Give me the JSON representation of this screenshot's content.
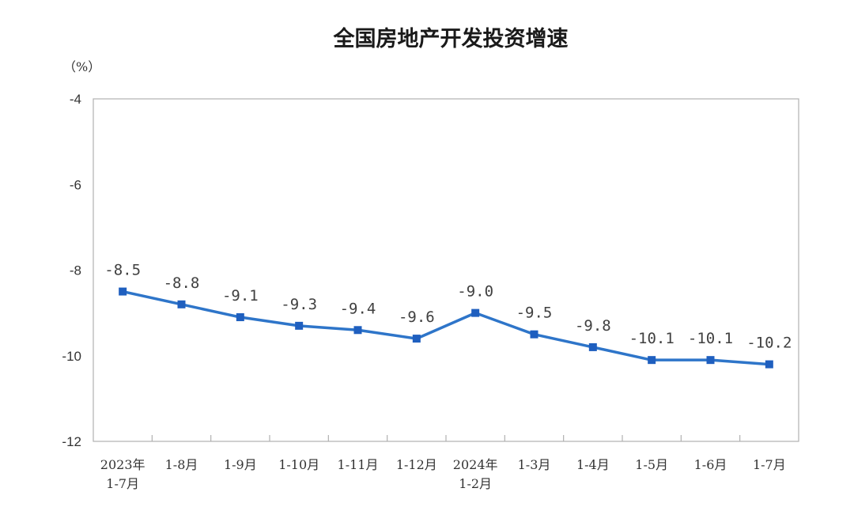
{
  "chart_data": {
    "type": "line",
    "title": "全国房地产开发投资增速",
    "unit_label": "（%）",
    "categories": [
      [
        "2023年",
        "1-7月"
      ],
      [
        "1-8月"
      ],
      [
        "1-9月"
      ],
      [
        "1-10月"
      ],
      [
        "1-11月"
      ],
      [
        "1-12月"
      ],
      [
        "2024年",
        "1-2月"
      ],
      [
        "1-3月"
      ],
      [
        "1-4月"
      ],
      [
        "1-5月"
      ],
      [
        "1-6月"
      ],
      [
        "1-7月"
      ]
    ],
    "values": [
      -8.5,
      -8.8,
      -9.1,
      -9.3,
      -9.4,
      -9.6,
      -9.0,
      -9.5,
      -9.8,
      -10.1,
      -10.1,
      -10.2
    ],
    "data_labels": [
      "-8.5",
      "-8.8",
      "-9.1",
      "-9.3",
      "-9.4",
      "-9.6",
      "-9.0",
      "-9.5",
      "-9.8",
      "-10.1",
      "-10.1",
      "-10.2"
    ],
    "y_ticks": [
      "-4",
      "-6",
      "-8",
      "-10",
      "-12"
    ],
    "ylim": [
      -12,
      -4
    ],
    "grid": false,
    "colors": {
      "line": "#2e75c9",
      "marker": "#1f5fbf",
      "axis": "#b0b0b0"
    }
  }
}
